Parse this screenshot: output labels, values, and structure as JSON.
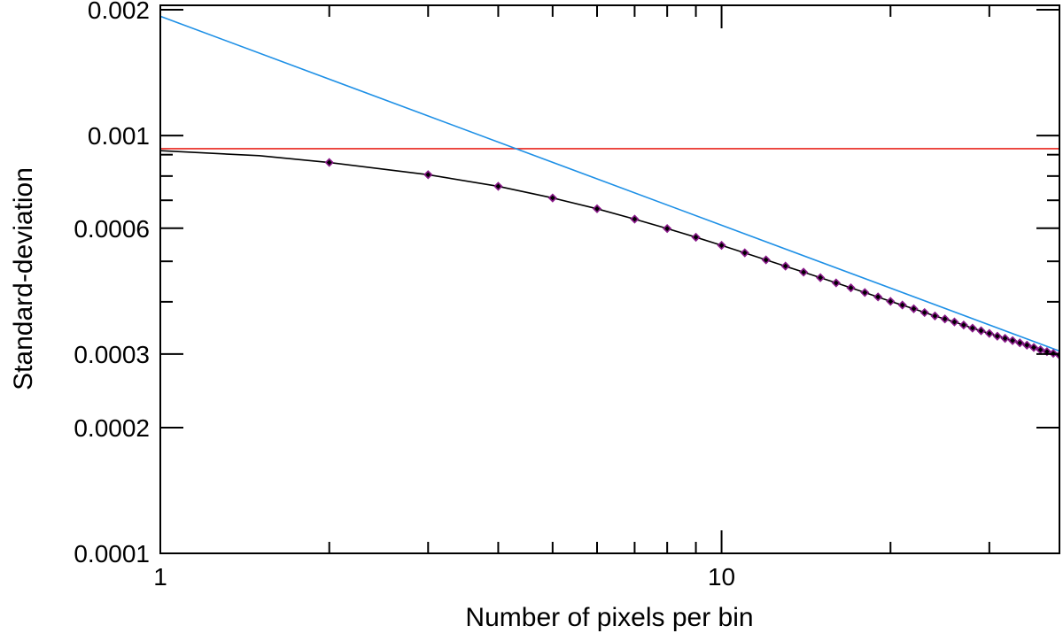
{
  "chart_data": {
    "type": "line",
    "xlabel": "Number of pixels per bin",
    "ylabel": "Standard-deviation",
    "xscale": "log",
    "yscale": "log",
    "xlim": [
      1,
      40
    ],
    "ylim": [
      0.0001,
      0.00205
    ],
    "x_ticks": [
      {
        "value": 1,
        "label": "1"
      },
      {
        "value": 10,
        "label": "10"
      }
    ],
    "y_ticks": [
      {
        "value": 0.0001,
        "label": "0.0001"
      },
      {
        "value": 0.0002,
        "label": "0.0002"
      },
      {
        "value": 0.0003,
        "label": "0.0003"
      },
      {
        "value": 0.0006,
        "label": "0.0006"
      },
      {
        "value": 0.001,
        "label": "0.001"
      },
      {
        "value": 0.002,
        "label": "0.002"
      }
    ],
    "y_minor_ticks": [
      0.0004,
      0.0005,
      0.0007,
      0.0008,
      0.0009
    ],
    "grid": false,
    "legend": "none",
    "series": [
      {
        "kind": "horizontal-line",
        "color": "#e8261e",
        "y": 0.00093
      },
      {
        "kind": "power-law-line",
        "color": "#1e90e6",
        "x": [
          1,
          40
        ],
        "y": [
          0.00193,
          0.000305
        ]
      },
      {
        "kind": "model-curve",
        "color": "#000000",
        "x": [
          1,
          1.5,
          2,
          3,
          4,
          5,
          6,
          7,
          8,
          9,
          10,
          12,
          14,
          16,
          18,
          20,
          22,
          24,
          26,
          28,
          30,
          32,
          34,
          36,
          38,
          40
        ],
        "y": [
          0.00092,
          0.000895,
          0.000862,
          0.000806,
          0.000756,
          0.000709,
          0.000668,
          0.000631,
          0.000599,
          0.000571,
          0.000546,
          0.000504,
          0.000471,
          0.000444,
          0.000421,
          0.000401,
          0.000385,
          0.00037,
          0.000358,
          0.000346,
          0.000336,
          0.000327,
          0.000319,
          0.000311,
          0.000304,
          0.000298
        ]
      },
      {
        "kind": "markers",
        "marker": "diamond",
        "color": "#8a1a8a",
        "x": [
          2,
          3,
          4,
          5,
          6,
          7,
          8,
          9,
          10,
          11,
          12,
          13,
          14,
          15,
          16,
          17,
          18,
          19,
          20,
          21,
          22,
          23,
          24,
          25,
          26,
          27,
          28,
          29,
          30,
          31,
          32,
          33,
          34,
          35,
          36,
          37,
          38,
          39,
          40
        ],
        "y": [
          0.000862,
          0.000806,
          0.000756,
          0.000709,
          0.000668,
          0.000631,
          0.000599,
          0.000571,
          0.000546,
          0.000524,
          0.000504,
          0.000487,
          0.000471,
          0.000457,
          0.000444,
          0.000432,
          0.000421,
          0.000411,
          0.000401,
          0.000393,
          0.000385,
          0.000377,
          0.00037,
          0.000364,
          0.000358,
          0.000352,
          0.000346,
          0.000341,
          0.000336,
          0.000331,
          0.000327,
          0.000323,
          0.000319,
          0.000315,
          0.000311,
          0.000307,
          0.000304,
          0.000301,
          0.000298
        ]
      }
    ]
  }
}
